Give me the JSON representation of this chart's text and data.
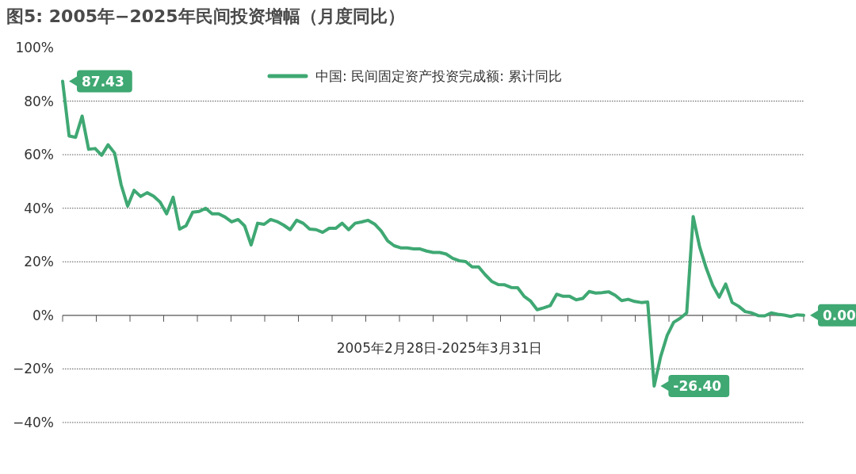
{
  "chart_data": {
    "type": "line",
    "title": "图5: 2005年−2025年民间投资增幅（月度同比）",
    "xlabel": "2005年2月28日-2025年3月31日",
    "categories": [
      null,
      null,
      null,
      null,
      null,
      null,
      null,
      null,
      null,
      null,
      null,
      null,
      null,
      null,
      null,
      null,
      null,
      null,
      null,
      null,
      null,
      null,
      null,
      null,
      null,
      null,
      null,
      null,
      null,
      null,
      null,
      null,
      null,
      null,
      null,
      null,
      null,
      null,
      null,
      null,
      null,
      null,
      null,
      null,
      null,
      null,
      null,
      null,
      null,
      null,
      null,
      null,
      null,
      null,
      null,
      null,
      null,
      null,
      null,
      null,
      null,
      null,
      null,
      null,
      null,
      null,
      null,
      null,
      null,
      null,
      null,
      null,
      null,
      null,
      null,
      null,
      null,
      null,
      null,
      null,
      null,
      null,
      null,
      null,
      null,
      null,
      null,
      null,
      null,
      null,
      null,
      null,
      null,
      null,
      null,
      null,
      null,
      null,
      null,
      null,
      null,
      null,
      null,
      null,
      null,
      null,
      null,
      null,
      null,
      null,
      null,
      null,
      null,
      null,
      null
    ],
    "series": [
      {
        "name": "中国: 民间固定资产投资完成额: 累计同比",
        "color": "#3fa873",
        "values": [
          87.43,
          67,
          66.5,
          74.4,
          62,
          62.3,
          59.8,
          63.7,
          60.6,
          48.8,
          40.8,
          46.7,
          44.4,
          45.8,
          44.5,
          42.3,
          37.9,
          44.1,
          32.2,
          33.5,
          38.5,
          38.8,
          40,
          37.9,
          37.9,
          36.7,
          34.9,
          35.8,
          33.4,
          26.3,
          34.4,
          34,
          35.8,
          35,
          33.7,
          32,
          35.5,
          34.4,
          32.2,
          32,
          31,
          32.5,
          32.5,
          34.4,
          32,
          34.4,
          34.9,
          35.5,
          34.1,
          31.5,
          27.8,
          26,
          25.2,
          25.2,
          24.8,
          24.8,
          24,
          23.5,
          23.5,
          22.9,
          21.3,
          20.4,
          20.1,
          18.1,
          18.1,
          15.2,
          12.7,
          11.5,
          11.4,
          10.4,
          10.3,
          7.1,
          5.3,
          2.1,
          2.8,
          3.6,
          7.9,
          7.1,
          7.1,
          5.8,
          6.3,
          8.9,
          8.3,
          8.5,
          8.8,
          7.5,
          5.5,
          6,
          5.2,
          4.8,
          5,
          -26.4,
          -15.4,
          -7.5,
          -2.6,
          -1.1,
          0.9,
          36.9,
          25.5,
          17.7,
          11.2,
          6.8,
          11.7,
          4.8,
          3.4,
          1.4,
          0.9,
          -0.1,
          -0.2,
          0.9,
          0.4,
          0.1,
          -0.4,
          0.2,
          0
        ],
        "value_labels": [
          "87.43",
          null,
          null,
          null,
          null,
          null,
          null,
          null,
          null,
          null,
          null,
          null,
          null,
          null,
          null,
          null,
          null,
          null,
          null,
          null,
          null,
          null,
          null,
          null,
          null,
          null,
          null,
          null,
          null,
          null,
          null,
          null,
          null,
          null,
          null,
          null,
          null,
          null,
          null,
          null,
          null,
          null,
          null,
          null,
          null,
          null,
          null,
          null,
          null,
          null,
          null,
          null,
          null,
          null,
          null,
          null,
          null,
          null,
          null,
          null,
          null,
          null,
          null,
          null,
          null,
          null,
          null,
          null,
          null,
          null,
          null,
          null,
          null,
          null,
          null,
          null,
          null,
          null,
          null,
          null,
          null,
          null,
          null,
          null,
          null,
          null,
          null,
          null,
          null,
          null,
          null,
          "-26.40",
          null,
          null,
          null,
          null,
          null,
          null,
          null,
          null,
          null,
          null,
          null,
          null,
          null,
          null,
          null,
          null,
          null,
          null,
          null,
          null,
          null,
          null,
          "0.00"
        ]
      }
    ],
    "ylim": [
      -40,
      100
    ],
    "yticks": [
      {
        "value": -40,
        "label": "−40%"
      },
      {
        "value": -20,
        "label": "−20%"
      },
      {
        "value": 0,
        "label": "0%"
      },
      {
        "value": 20,
        "label": "20%"
      },
      {
        "value": 40,
        "label": "40%"
      },
      {
        "value": 60,
        "label": "60%"
      },
      {
        "value": 80,
        "label": "80%"
      },
      {
        "value": 100,
        "label": "100%"
      }
    ],
    "grid": "y",
    "legend": "top",
    "tick_labels": "y",
    "marker": "none",
    "line_style": "solid"
  }
}
